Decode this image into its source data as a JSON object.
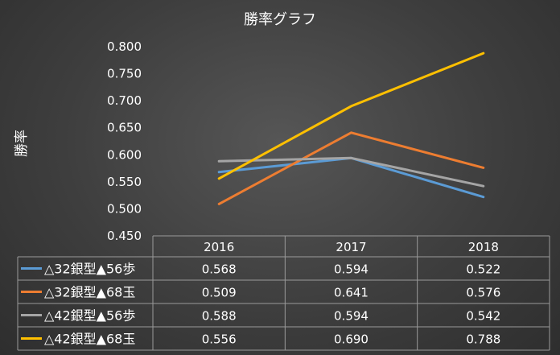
{
  "chart_data": {
    "type": "line",
    "title": "勝率グラフ",
    "ylabel": "勝率",
    "xlabel": "",
    "categories": [
      "2016",
      "2017",
      "2018"
    ],
    "ylim": [
      0.45,
      0.8
    ],
    "yticks": [
      "0.800",
      "0.750",
      "0.700",
      "0.650",
      "0.600",
      "0.550",
      "0.500",
      "0.450"
    ],
    "ytick_values": [
      0.8,
      0.75,
      0.7,
      0.65,
      0.6,
      0.55,
      0.5,
      0.45
    ],
    "grid": false,
    "legend": "data-table",
    "series": [
      {
        "name": "△32銀型▲56歩",
        "color": "#5b9bd5",
        "values": [
          0.568,
          0.594,
          0.522
        ],
        "labels": [
          "0.568",
          "0.594",
          "0.522"
        ]
      },
      {
        "name": "△32銀型▲68玉",
        "color": "#ed7d31",
        "values": [
          0.509,
          0.641,
          0.576
        ],
        "labels": [
          "0.509",
          "0.641",
          "0.576"
        ]
      },
      {
        "name": "△42銀型▲56歩",
        "color": "#a5a5a5",
        "values": [
          0.588,
          0.594,
          0.542
        ],
        "labels": [
          "0.588",
          "0.594",
          "0.542"
        ]
      },
      {
        "name": "△42銀型▲68玉",
        "color": "#ffc000",
        "values": [
          0.556,
          0.69,
          0.788
        ],
        "labels": [
          "0.556",
          "0.690",
          "0.788"
        ]
      }
    ]
  }
}
